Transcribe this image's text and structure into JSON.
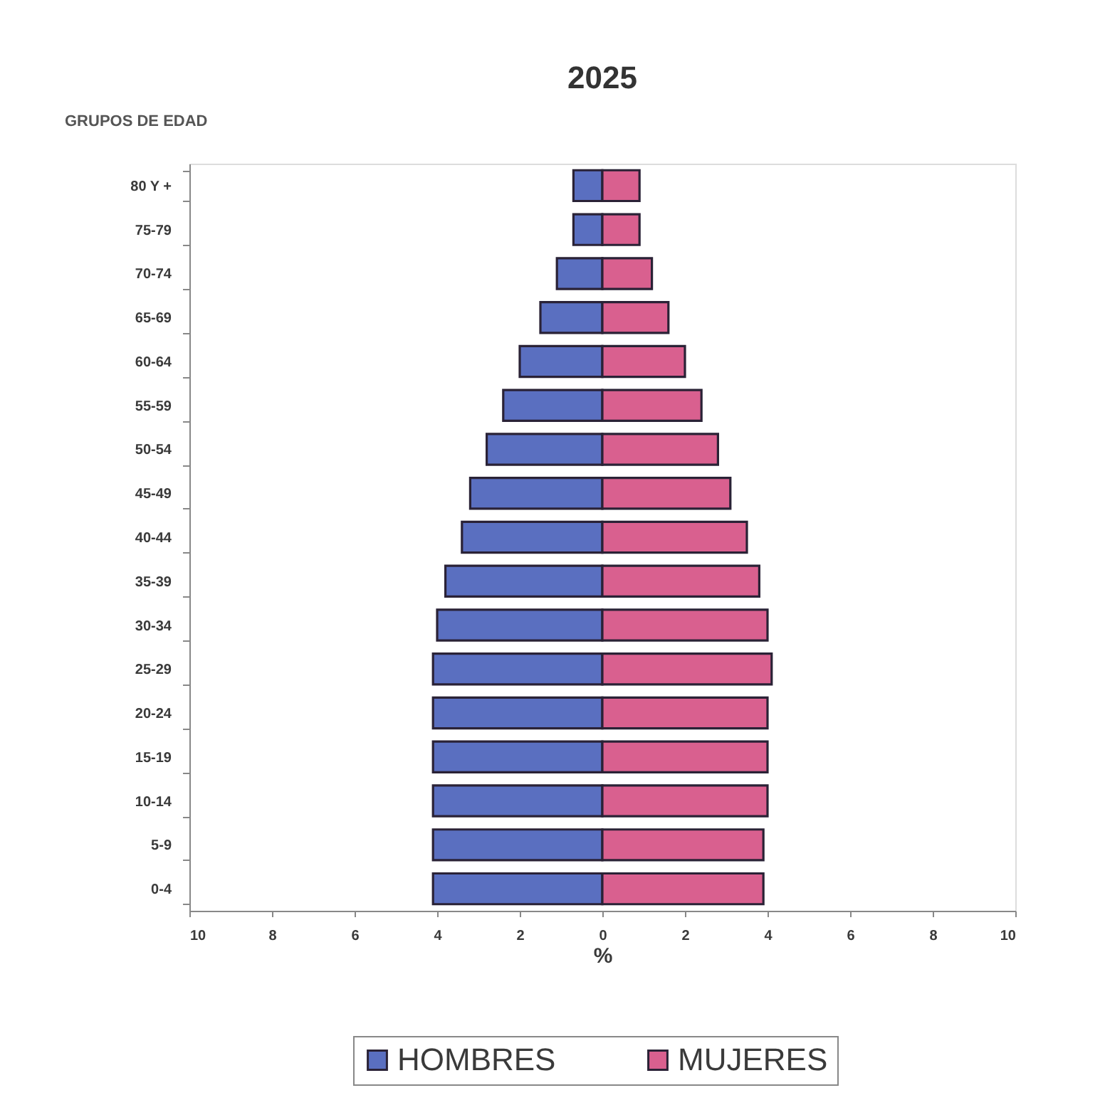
{
  "chart_data": {
    "type": "bar",
    "title": "2025",
    "xlabel": "%",
    "ylabel": "GRUPOS DE EDAD",
    "orientation": "horizontal",
    "stacked": true,
    "legend": "bottom",
    "categories": [
      "80 Y +",
      "75-79",
      "70-74",
      "65-69",
      "60-64",
      "55-59",
      "50-54",
      "45-49",
      "40-44",
      "35-39",
      "30-34",
      "25-29",
      "20-24",
      "15-19",
      "10-14",
      "5-9",
      "0-4"
    ],
    "series": [
      {
        "name": "HOMBRES",
        "color": "#5a6fc0",
        "values": [
          -0.7,
          -0.7,
          -1.1,
          -1.5,
          -2.0,
          -2.4,
          -2.8,
          -3.2,
          -3.4,
          -3.8,
          -4.0,
          -4.1,
          -4.1,
          -4.1,
          -4.1,
          -4.1,
          -4.1
        ]
      },
      {
        "name": "MUJERES",
        "color": "#d9608f",
        "values": [
          0.9,
          0.9,
          1.2,
          1.6,
          2.0,
          2.4,
          2.8,
          3.1,
          3.5,
          3.8,
          4.0,
          4.1,
          4.0,
          4.0,
          4.0,
          3.9,
          3.9
        ]
      }
    ],
    "xlim": [
      -10,
      10
    ],
    "xticks": [
      {
        "value": -10,
        "label": "10"
      },
      {
        "value": -8,
        "label": "8"
      },
      {
        "value": -6,
        "label": "6"
      },
      {
        "value": -4,
        "label": "4"
      },
      {
        "value": -2,
        "label": "2"
      },
      0,
      2,
      4,
      6,
      8,
      10
    ]
  }
}
